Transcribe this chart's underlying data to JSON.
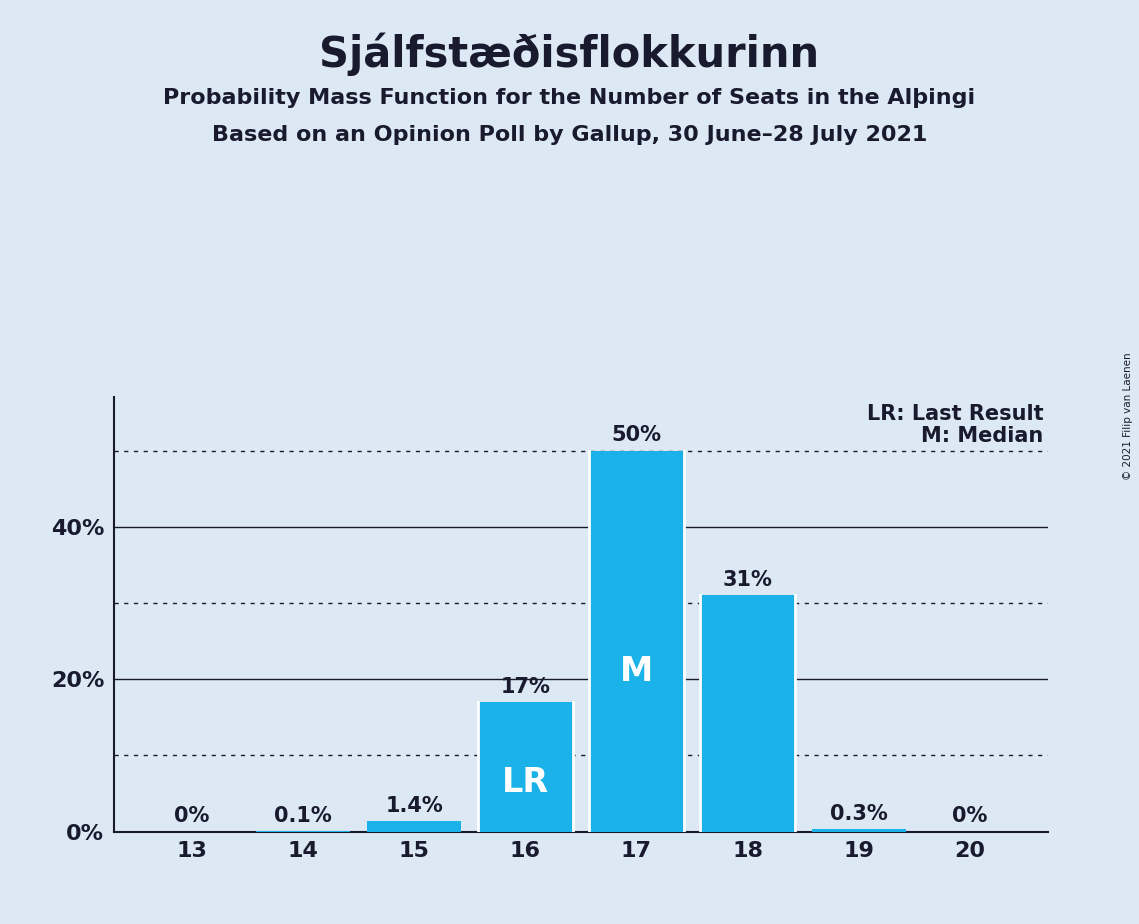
{
  "title": "Sjálfstæðisflokkurinn",
  "subtitle1": "Probability Mass Function for the Number of Seats in the Alþingi",
  "subtitle2": "Based on an Opinion Poll by Gallup, 30 June–28 July 2021",
  "copyright": "© 2021 Filip van Laenen",
  "seats": [
    13,
    14,
    15,
    16,
    17,
    18,
    19,
    20
  ],
  "values": [
    0.0,
    0.1,
    1.4,
    17.0,
    50.0,
    31.0,
    0.3,
    0.0
  ],
  "bar_labels": [
    "0%",
    "0.1%",
    "1.4%",
    "17%",
    "50%",
    "31%",
    "0.3%",
    "0%"
  ],
  "bar_color": "#1ab2e8",
  "background_color": "#dce9f5",
  "text_color": "#1a1a2e",
  "lr_seat": 16,
  "median_seat": 17,
  "lr_label": "LR",
  "median_label": "M",
  "lr_legend": "LR: Last Result",
  "median_legend": "M: Median",
  "ytick_labels": [
    "0%",
    "20%",
    "40%"
  ],
  "ytick_values": [
    0,
    20,
    40
  ],
  "ylim": [
    0,
    57
  ],
  "dotted_lines": [
    10,
    30,
    50
  ],
  "solid_lines": [
    20,
    40
  ],
  "white_line_seats": [
    16,
    17,
    18
  ],
  "title_fontsize": 30,
  "subtitle_fontsize": 16,
  "tick_fontsize": 16,
  "bar_annotation_fontsize": 15,
  "inside_label_fontsize": 24,
  "legend_fontsize": 15
}
